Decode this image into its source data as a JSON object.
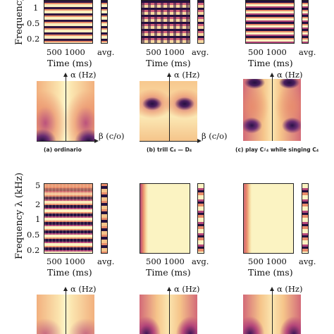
{
  "top_row": {
    "y_axis_label": "Frequency",
    "y_ticks": [
      "1",
      "0.5",
      "0.2"
    ],
    "x_ticks": "500 1000",
    "x_label": "Time (ms)",
    "avg_label": "avg."
  },
  "middle_row": {
    "alpha_label": "α (Hz)",
    "beta_label": "β (c/o)",
    "captions": [
      "(a) ordinario",
      "(b) trill C₄ — D₄",
      "(c) play C♯₄ while singing C₄"
    ]
  },
  "bottom_row": {
    "y_axis_label": "Frequency λ (kHz)",
    "y_ticks": [
      "5",
      "2",
      "1",
      "0.5",
      "0.2"
    ],
    "x_ticks": "500 1000",
    "x_label": "Time (ms)",
    "avg_label": "avg.",
    "alpha_label": "α (Hz)"
  },
  "colors": {
    "pale": "#fbf3c2",
    "dark": "#241040",
    "purple": "#6a2d73",
    "magenta": "#b5467a",
    "orange": "#e98c6a"
  }
}
